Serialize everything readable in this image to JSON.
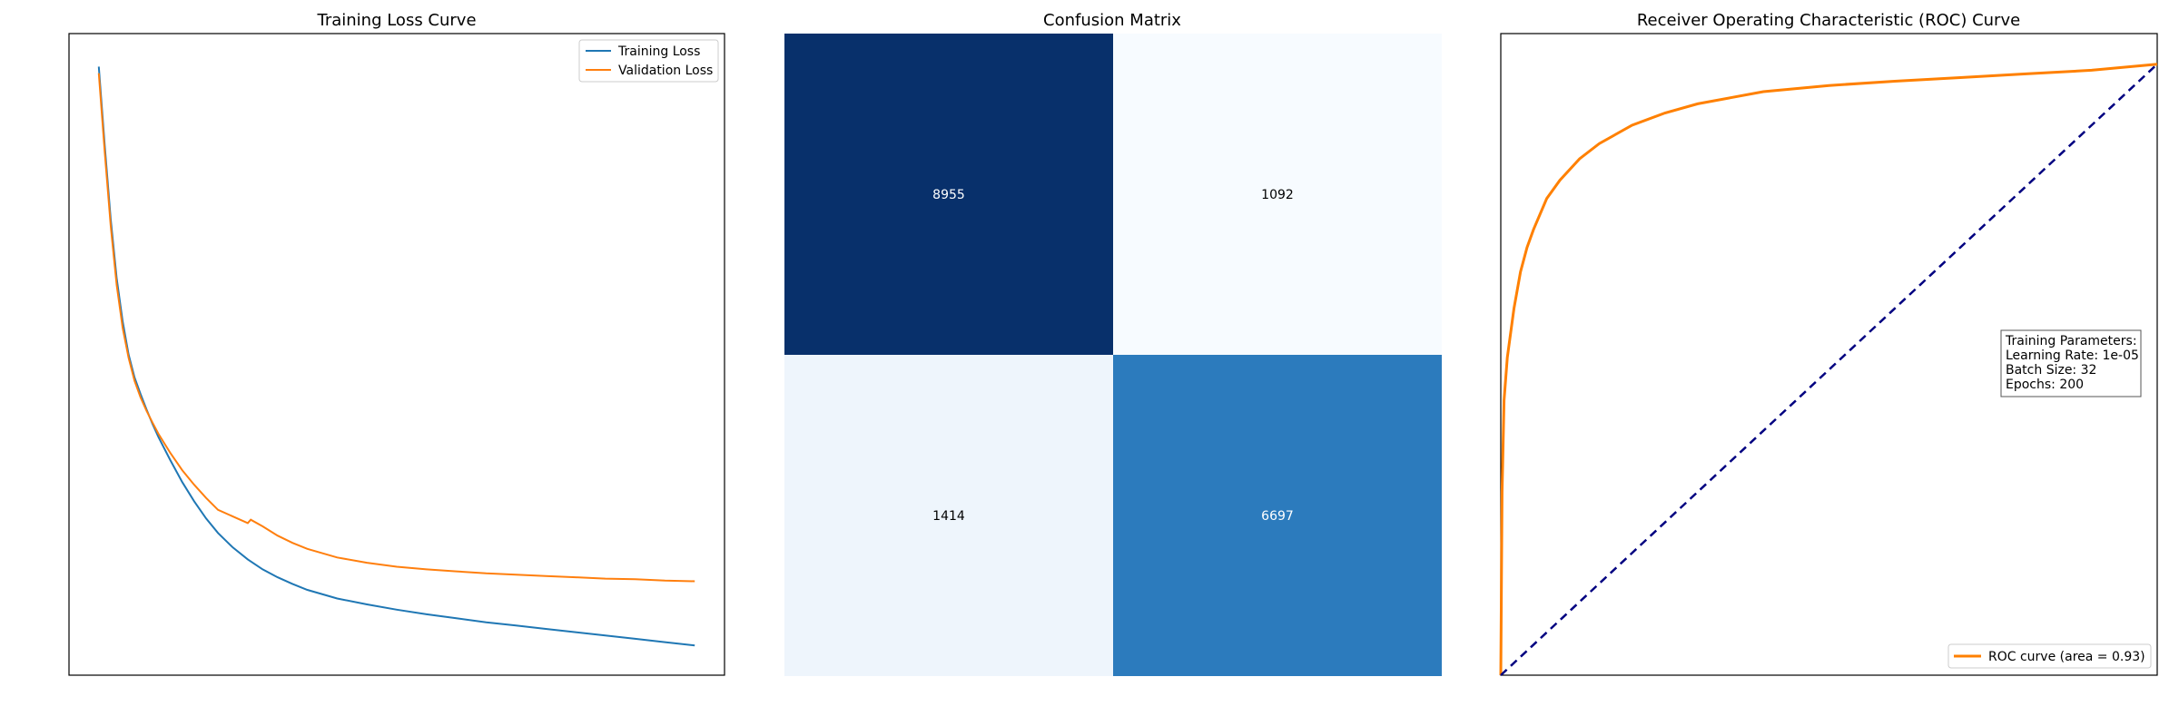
{
  "chart_data": [
    {
      "type": "line",
      "title": "Training Loss Curve",
      "xlabel": "",
      "ylabel": "",
      "axes_visible": false,
      "legend_position": "upper right",
      "series": [
        {
          "name": "Training Loss",
          "color": "#1f77b4",
          "points": [
            [
              0,
              0.95
            ],
            [
              2,
              0.83
            ],
            [
              4,
              0.72
            ],
            [
              6,
              0.63
            ],
            [
              8,
              0.565
            ],
            [
              10,
              0.515
            ],
            [
              12,
              0.48
            ],
            [
              14,
              0.455
            ],
            [
              16,
              0.432
            ],
            [
              18,
              0.41
            ],
            [
              20,
              0.39
            ],
            [
              24,
              0.355
            ],
            [
              28,
              0.322
            ],
            [
              32,
              0.293
            ],
            [
              36,
              0.267
            ],
            [
              40,
              0.245
            ],
            [
              45,
              0.223
            ],
            [
              50,
              0.205
            ],
            [
              55,
              0.19
            ],
            [
              60,
              0.178
            ],
            [
              65,
              0.168
            ],
            [
              70,
              0.159
            ],
            [
              80,
              0.146
            ],
            [
              90,
              0.137
            ],
            [
              100,
              0.129
            ],
            [
              110,
              0.122
            ],
            [
              120,
              0.116
            ],
            [
              130,
              0.11
            ],
            [
              140,
              0.105
            ],
            [
              150,
              0.1
            ],
            [
              160,
              0.095
            ],
            [
              170,
              0.09
            ],
            [
              180,
              0.085
            ],
            [
              190,
              0.08
            ],
            [
              200,
              0.075
            ]
          ]
        },
        {
          "name": "Validation Loss",
          "color": "#ff7f0e",
          "points": [
            [
              0,
              0.94
            ],
            [
              2,
              0.82
            ],
            [
              4,
              0.71
            ],
            [
              6,
              0.62
            ],
            [
              8,
              0.555
            ],
            [
              10,
              0.51
            ],
            [
              12,
              0.475
            ],
            [
              14,
              0.45
            ],
            [
              16,
              0.43
            ],
            [
              18,
              0.412
            ],
            [
              20,
              0.395
            ],
            [
              24,
              0.366
            ],
            [
              28,
              0.34
            ],
            [
              32,
              0.318
            ],
            [
              36,
              0.298
            ],
            [
              40,
              0.28
            ],
            [
              50,
              0.26
            ],
            [
              51,
              0.265
            ],
            [
              55,
              0.255
            ],
            [
              60,
              0.241
            ],
            [
              65,
              0.23
            ],
            [
              70,
              0.221
            ],
            [
              80,
              0.208
            ],
            [
              90,
              0.2
            ],
            [
              100,
              0.194
            ],
            [
              110,
              0.19
            ],
            [
              120,
              0.187
            ],
            [
              130,
              0.184
            ],
            [
              140,
              0.182
            ],
            [
              150,
              0.18
            ],
            [
              160,
              0.178
            ],
            [
              170,
              0.176
            ],
            [
              180,
              0.175
            ],
            [
              190,
              0.173
            ],
            [
              200,
              0.172
            ]
          ]
        }
      ],
      "xlim": [
        -10,
        210
      ],
      "ylim": [
        0.03,
        1.0
      ]
    },
    {
      "type": "heatmap",
      "title": "Confusion Matrix",
      "colormap": "Blues",
      "rows": 2,
      "cols": 2,
      "values": [
        [
          8955,
          1092
        ],
        [
          1414,
          6697
        ]
      ],
      "cell_colors": [
        [
          "#08306b",
          "#f7fbff"
        ],
        [
          "#eef5fc",
          "#2c7bbd"
        ]
      ],
      "cell_text_colors": [
        [
          "#ffffff",
          "#000000"
        ],
        [
          "#000000",
          "#ffffff"
        ]
      ]
    },
    {
      "type": "line",
      "title": "Receiver Operating Characteristic (ROC) Curve",
      "axes_visible": false,
      "legend_position": "lower right",
      "series": [
        {
          "name": "ROC curve (area = 0.93)",
          "color": "#ff8000",
          "points": [
            [
              0,
              0
            ],
            [
              0.002,
              0.3
            ],
            [
              0.005,
              0.45
            ],
            [
              0.01,
              0.52
            ],
            [
              0.02,
              0.6
            ],
            [
              0.03,
              0.66
            ],
            [
              0.04,
              0.7
            ],
            [
              0.05,
              0.73
            ],
            [
              0.07,
              0.78
            ],
            [
              0.09,
              0.81
            ],
            [
              0.12,
              0.845
            ],
            [
              0.15,
              0.87
            ],
            [
              0.2,
              0.9
            ],
            [
              0.25,
              0.92
            ],
            [
              0.3,
              0.935
            ],
            [
              0.35,
              0.945
            ],
            [
              0.4,
              0.955
            ],
            [
              0.5,
              0.965
            ],
            [
              0.6,
              0.972
            ],
            [
              0.7,
              0.978
            ],
            [
              0.8,
              0.984
            ],
            [
              0.9,
              0.99
            ],
            [
              1,
              1
            ]
          ]
        },
        {
          "name": "",
          "color": "#000080",
          "dashed": true,
          "points": [
            [
              0,
              0
            ],
            [
              1,
              1
            ]
          ]
        }
      ],
      "xlim": [
        0,
        1.0
      ],
      "ylim": [
        0,
        1.05
      ],
      "annotation": {
        "lines": [
          "Training Parameters:",
          "Learning Rate: 1e-05",
          "Batch Size: 32",
          "Epochs: 200"
        ]
      }
    }
  ]
}
